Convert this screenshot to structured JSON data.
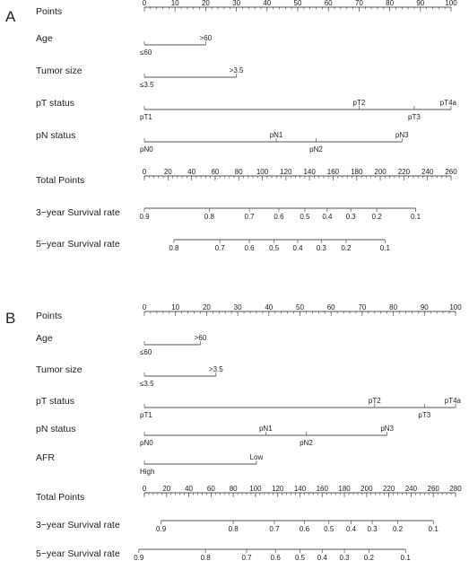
{
  "nomograms": [
    {
      "panel": "A",
      "rows": [
        {
          "label": "Points",
          "kind": "scale",
          "domain": [
            0,
            100
          ],
          "ticks": [
            0,
            10,
            20,
            30,
            40,
            50,
            60,
            70,
            80,
            90,
            100
          ]
        },
        {
          "label": "Age",
          "kind": "cat",
          "cats": [
            {
              "label": "≤60",
              "pos": 0,
              "side": "below"
            },
            {
              "label": ">60",
              "pos": 20,
              "side": "above"
            }
          ]
        },
        {
          "label": "Tumor size",
          "kind": "cat",
          "cats": [
            {
              "label": "≤3.5",
              "pos": 0,
              "side": "below"
            },
            {
              "label": ">3.5",
              "pos": 30,
              "side": "above"
            }
          ]
        },
        {
          "label": "pT status",
          "kind": "cat",
          "cats": [
            {
              "label": "pT1",
              "pos": 0,
              "side": "below"
            },
            {
              "label": "pT2",
              "pos": 70,
              "side": "above"
            },
            {
              "label": "pT3",
              "pos": 88,
              "side": "below"
            },
            {
              "label": "pT4a",
              "pos": 100,
              "side": "above"
            }
          ]
        },
        {
          "label": "pN status",
          "kind": "cat",
          "cats": [
            {
              "label": "pN0",
              "pos": 0,
              "side": "below"
            },
            {
              "label": "pN1",
              "pos": 43,
              "side": "above"
            },
            {
              "label": "pN2",
              "pos": 56,
              "side": "below"
            },
            {
              "label": "pN3",
              "pos": 84,
              "side": "above"
            }
          ]
        },
        {
          "label": "Total Points",
          "kind": "scale",
          "domain": [
            0,
            260
          ],
          "ticks": [
            0,
            20,
            40,
            60,
            80,
            100,
            120,
            140,
            160,
            180,
            200,
            220,
            240,
            260
          ]
        },
        {
          "label": "3−year Survival rate",
          "kind": "rate",
          "marks": [
            {
              "label": "0.9",
              "total": 0
            },
            {
              "label": "0.8",
              "total": 55
            },
            {
              "label": "0.7",
              "total": 89
            },
            {
              "label": "0.6",
              "total": 114
            },
            {
              "label": "0.5",
              "total": 136
            },
            {
              "label": "0.4",
              "total": 155
            },
            {
              "label": "0.3",
              "total": 175
            },
            {
              "label": "0.2",
              "total": 197
            },
            {
              "label": "0.1",
              "total": 230
            }
          ]
        },
        {
          "label": "5−year Survival rate",
          "kind": "rate",
          "marks": [
            {
              "label": "0.8",
              "total": 25
            },
            {
              "label": "0.7",
              "total": 64
            },
            {
              "label": "0.6",
              "total": 89
            },
            {
              "label": "0.5",
              "total": 110
            },
            {
              "label": "0.4",
              "total": 130
            },
            {
              "label": "0.3",
              "total": 150
            },
            {
              "label": "0.2",
              "total": 171
            },
            {
              "label": "0.1",
              "total": 204
            }
          ]
        }
      ]
    },
    {
      "panel": "B",
      "rows": [
        {
          "label": "Points",
          "kind": "scale",
          "domain": [
            0,
            100
          ],
          "ticks": [
            0,
            10,
            20,
            30,
            40,
            50,
            60,
            70,
            80,
            90,
            100
          ]
        },
        {
          "label": "Age",
          "kind": "cat",
          "cats": [
            {
              "label": "≤60",
              "pos": 0,
              "side": "below"
            },
            {
              "label": ">60",
              "pos": 18,
              "side": "above"
            }
          ]
        },
        {
          "label": "Tumor size",
          "kind": "cat",
          "cats": [
            {
              "label": "≤3.5",
              "pos": 0,
              "side": "below"
            },
            {
              "label": ">3.5",
              "pos": 23,
              "side": "above"
            }
          ]
        },
        {
          "label": "pT status",
          "kind": "cat",
          "cats": [
            {
              "label": "pT1",
              "pos": 0,
              "side": "below"
            },
            {
              "label": "pT2",
              "pos": 74,
              "side": "above"
            },
            {
              "label": "pT3",
              "pos": 90,
              "side": "below"
            },
            {
              "label": "pT4a",
              "pos": 100,
              "side": "above"
            }
          ]
        },
        {
          "label": "pN status",
          "kind": "cat",
          "cats": [
            {
              "label": "pN0",
              "pos": 0,
              "side": "below"
            },
            {
              "label": "pN1",
              "pos": 39,
              "side": "above"
            },
            {
              "label": "pN2",
              "pos": 52,
              "side": "below"
            },
            {
              "label": "pN3",
              "pos": 78,
              "side": "above"
            }
          ]
        },
        {
          "label": "AFR",
          "kind": "cat",
          "cats": [
            {
              "label": "High",
              "pos": 0,
              "side": "below"
            },
            {
              "label": "Low",
              "pos": 36,
              "side": "above"
            }
          ]
        },
        {
          "label": "Total Points",
          "kind": "scale",
          "domain": [
            0,
            280
          ],
          "ticks": [
            0,
            20,
            40,
            60,
            80,
            100,
            120,
            140,
            160,
            180,
            200,
            220,
            240,
            260,
            280
          ]
        },
        {
          "label": "3−year Survival rate",
          "kind": "rate",
          "marks": [
            {
              "label": "0.9",
              "total": 15
            },
            {
              "label": "0.8",
              "total": 80
            },
            {
              "label": "0.7",
              "total": 117
            },
            {
              "label": "0.6",
              "total": 144
            },
            {
              "label": "0.5",
              "total": 166
            },
            {
              "label": "0.4",
              "total": 186
            },
            {
              "label": "0.3",
              "total": 205
            },
            {
              "label": "0.2",
              "total": 228
            },
            {
              "label": "0.1",
              "total": 260
            }
          ]
        },
        {
          "label": "5−year Survival rate",
          "kind": "rate",
          "marks": [
            {
              "label": "0.9",
              "total": -5
            },
            {
              "label": "0.8",
              "total": 55
            },
            {
              "label": "0.7",
              "total": 92
            },
            {
              "label": "0.6",
              "total": 118
            },
            {
              "label": "0.5",
              "total": 140
            },
            {
              "label": "0.4",
              "total": 160
            },
            {
              "label": "0.3",
              "total": 180
            },
            {
              "label": "0.2",
              "total": 202
            },
            {
              "label": "0.1",
              "total": 235
            }
          ]
        }
      ]
    }
  ]
}
